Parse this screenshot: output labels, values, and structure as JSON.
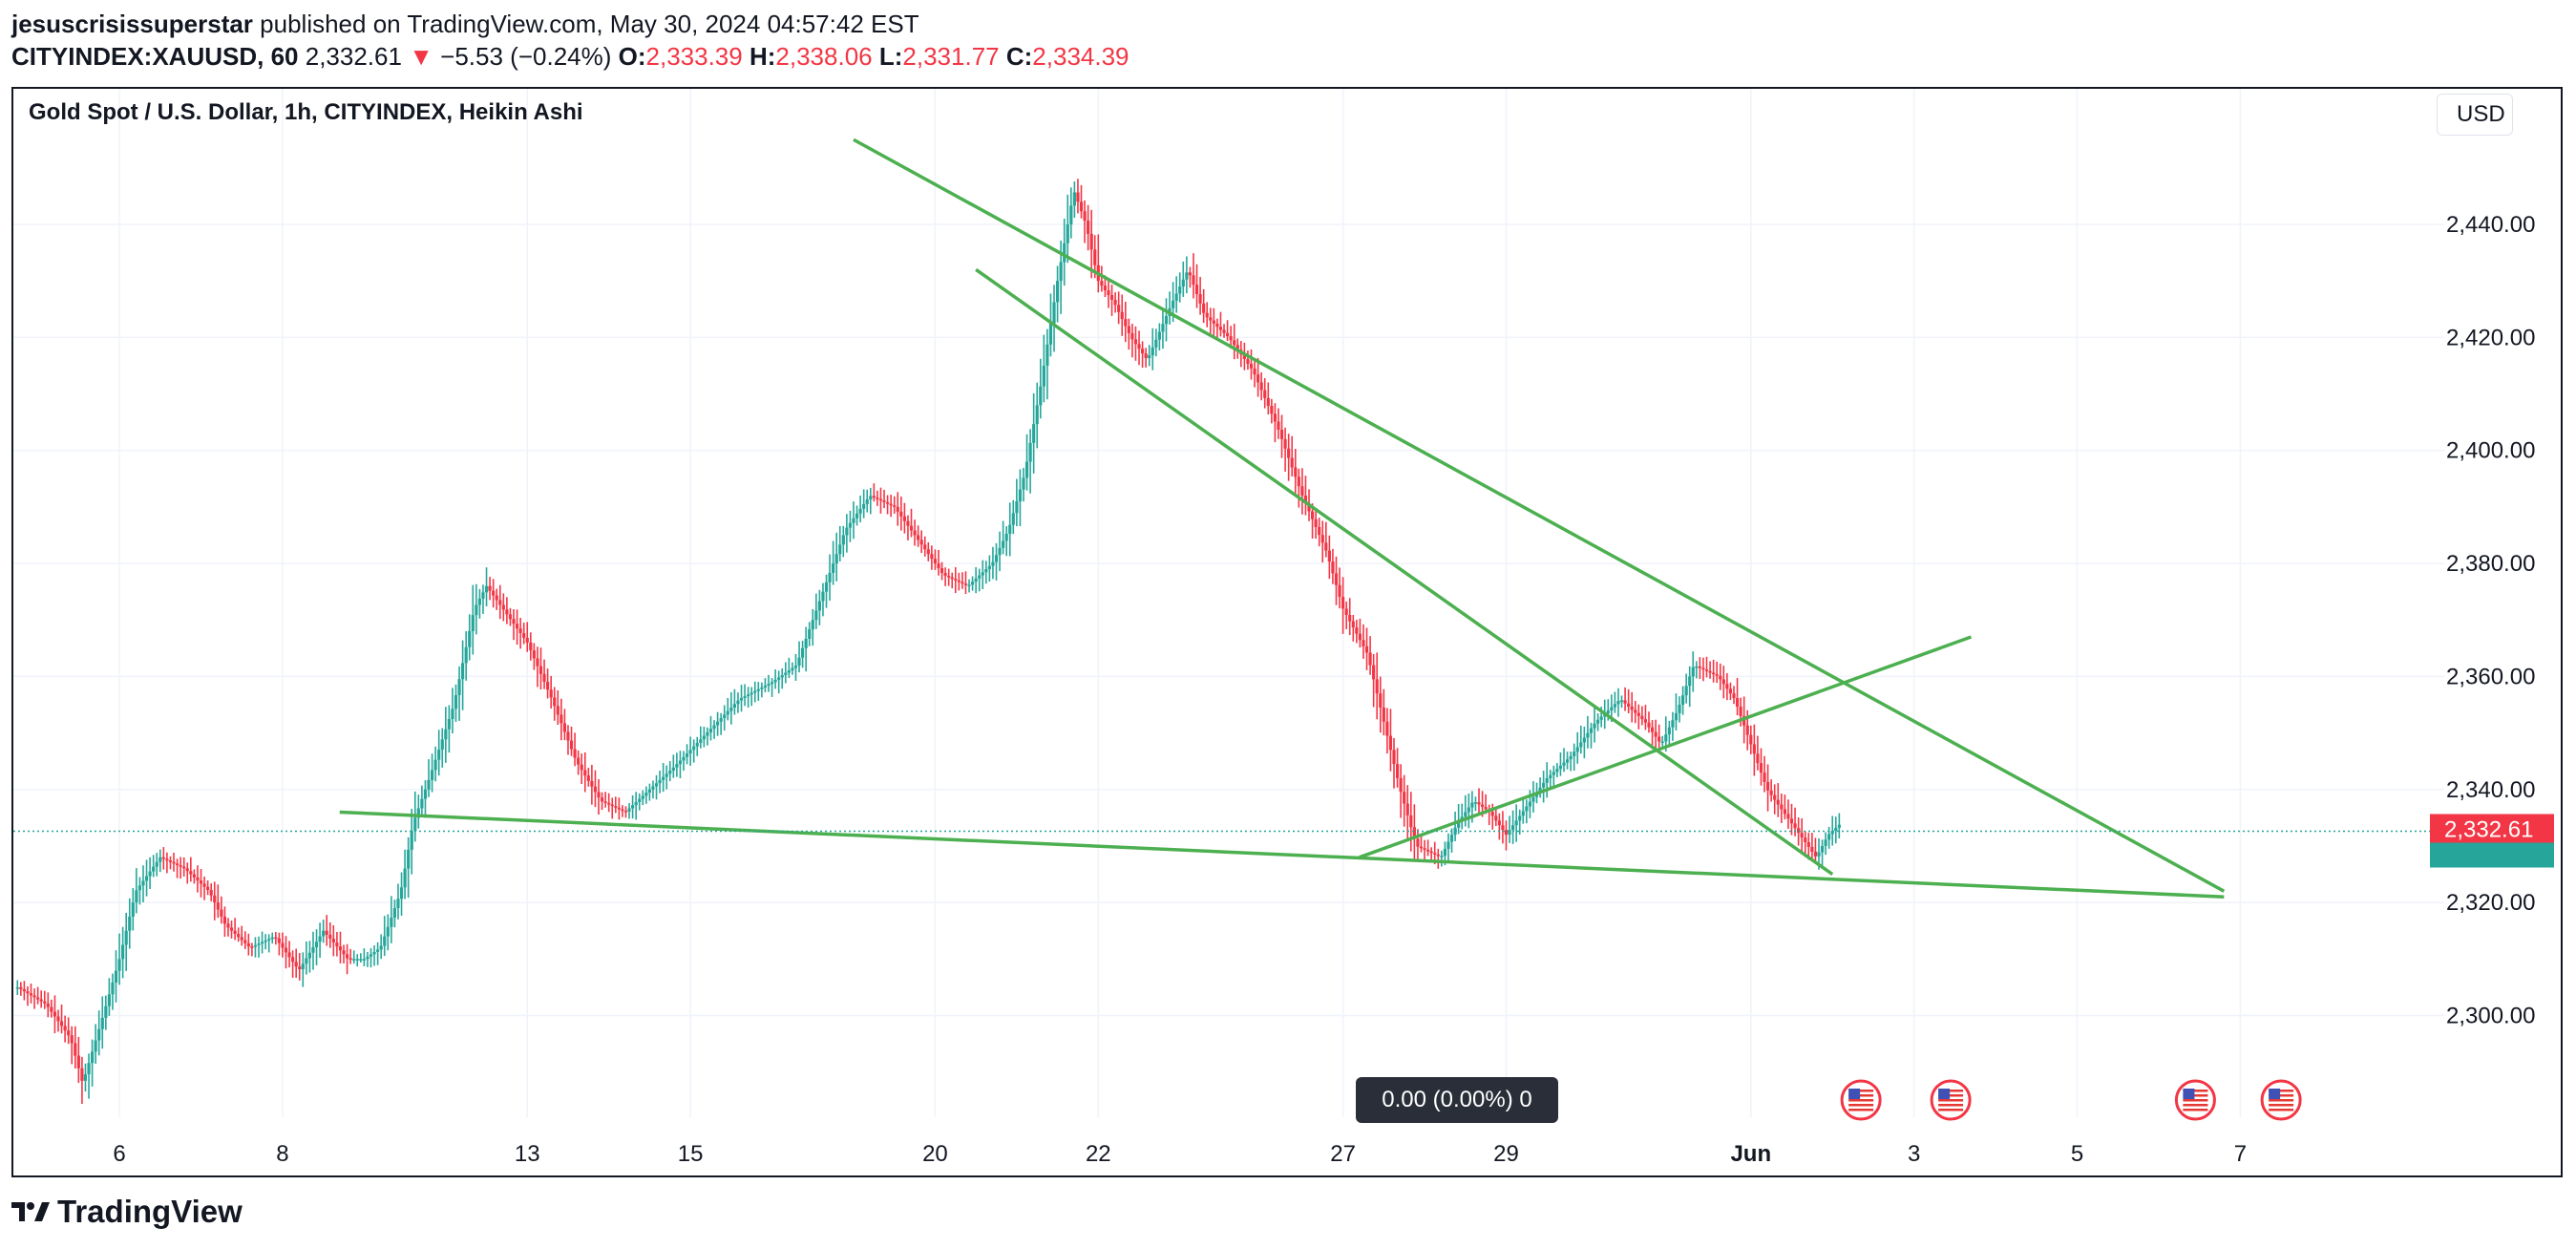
{
  "header": {
    "author": "jesuscrisissuperstar",
    "published": " published on TradingView.com, May 30, 2024 04:57:42 EST",
    "symbol": "CITYINDEX:XAUUSD, 60",
    "last": "2,332.61",
    "change_arrow": "▼",
    "change": "−5.53 (−0.24%)",
    "o_label": "O:",
    "o_value": "2,333.39",
    "h_label": "H:",
    "h_value": "2,338.06",
    "l_label": "L:",
    "l_value": "2,331.77",
    "c_label": "C:",
    "c_value": "2,334.39"
  },
  "legend_title": "Gold Spot / U.S. Dollar, 1h, CITYINDEX, Heikin Ashi",
  "currency": "USD",
  "measure_badge": "0.00 (0.00%) 0",
  "branding": "TradingView",
  "colors": {
    "up": "#26a69a",
    "down": "#f23645",
    "trendline": "#4caf50",
    "text": "#131722"
  },
  "chart_data": {
    "type": "candlestick",
    "style": "Heikin Ashi",
    "symbol": "XAUUSD",
    "timeframe": "1h",
    "y_ticks": [
      2300,
      2320,
      2340,
      2360,
      2380,
      2400,
      2420,
      2440
    ],
    "y_tick_labels": [
      "2,300.00",
      "2,320.00",
      "2,340.00",
      "2,360.00",
      "2,380.00",
      "2,400.00",
      "2,420.00",
      "2,440.00"
    ],
    "ylim": [
      2282,
      2464
    ],
    "x_tick_labels": [
      "6",
      "8",
      "13",
      "15",
      "20",
      "22",
      "27",
      "29",
      "Jun",
      "3",
      "5",
      "7"
    ],
    "x_tick_days": [
      6,
      8,
      11,
      13,
      16,
      18,
      21,
      23,
      26,
      28,
      30,
      32
    ],
    "xlim_days": [
      4.7,
      34.5
    ],
    "last_price": 2332.61,
    "last_price_label": "2,332.61",
    "grid": true,
    "series": [
      {
        "name": "price-path",
        "points": [
          [
            4.75,
            2305
          ],
          [
            5.1,
            2302
          ],
          [
            5.4,
            2296
          ],
          [
            5.55,
            2288
          ],
          [
            5.8,
            2300
          ],
          [
            6.0,
            2310
          ],
          [
            6.2,
            2322
          ],
          [
            6.5,
            2328
          ],
          [
            6.8,
            2326
          ],
          [
            7.1,
            2322
          ],
          [
            7.3,
            2316
          ],
          [
            7.6,
            2312
          ],
          [
            7.9,
            2314
          ],
          [
            8.2,
            2308
          ],
          [
            8.5,
            2315
          ],
          [
            8.8,
            2310
          ],
          [
            9.0,
            2310
          ],
          [
            9.2,
            2312
          ],
          [
            9.45,
            2322
          ],
          [
            9.6,
            2334
          ],
          [
            9.8,
            2342
          ],
          [
            10.1,
            2355
          ],
          [
            10.35,
            2372
          ],
          [
            10.5,
            2376
          ],
          [
            10.7,
            2372
          ],
          [
            11.0,
            2366
          ],
          [
            11.3,
            2356
          ],
          [
            11.6,
            2345
          ],
          [
            11.9,
            2338
          ],
          [
            12.2,
            2336
          ],
          [
            12.5,
            2340
          ],
          [
            12.8,
            2344
          ],
          [
            13.2,
            2350
          ],
          [
            13.6,
            2356
          ],
          [
            14.0,
            2359
          ],
          [
            14.3,
            2362
          ],
          [
            14.6,
            2374
          ],
          [
            14.9,
            2386
          ],
          [
            15.2,
            2392
          ],
          [
            15.5,
            2390
          ],
          [
            15.8,
            2384
          ],
          [
            16.1,
            2378
          ],
          [
            16.4,
            2376
          ],
          [
            16.7,
            2380
          ],
          [
            16.9,
            2386
          ],
          [
            17.1,
            2396
          ],
          [
            17.3,
            2412
          ],
          [
            17.5,
            2430
          ],
          [
            17.7,
            2446
          ],
          [
            17.85,
            2440
          ],
          [
            18.0,
            2430
          ],
          [
            18.2,
            2426
          ],
          [
            18.4,
            2420
          ],
          [
            18.6,
            2416
          ],
          [
            18.9,
            2426
          ],
          [
            19.1,
            2432
          ],
          [
            19.3,
            2424
          ],
          [
            19.6,
            2420
          ],
          [
            19.9,
            2414
          ],
          [
            20.2,
            2404
          ],
          [
            20.5,
            2392
          ],
          [
            20.8,
            2382
          ],
          [
            21.0,
            2372
          ],
          [
            21.3,
            2364
          ],
          [
            21.5,
            2352
          ],
          [
            21.7,
            2340
          ],
          [
            21.9,
            2330
          ],
          [
            22.2,
            2328
          ],
          [
            22.4,
            2334
          ],
          [
            22.6,
            2338
          ],
          [
            22.8,
            2336
          ],
          [
            23.0,
            2332
          ],
          [
            23.2,
            2336
          ],
          [
            23.5,
            2342
          ],
          [
            23.8,
            2346
          ],
          [
            24.1,
            2352
          ],
          [
            24.4,
            2356
          ],
          [
            24.7,
            2352
          ],
          [
            24.9,
            2348
          ],
          [
            25.1,
            2354
          ],
          [
            25.3,
            2362
          ],
          [
            25.6,
            2360
          ],
          [
            25.8,
            2356
          ],
          [
            26.0,
            2348
          ],
          [
            26.2,
            2340
          ],
          [
            26.4,
            2336
          ],
          [
            26.6,
            2332
          ],
          [
            26.8,
            2328
          ],
          [
            26.95,
            2332
          ],
          [
            27.1,
            2334
          ]
        ]
      }
    ],
    "trendlines": [
      {
        "from": [
          15.0,
          2455
        ],
        "to": [
          31.8,
          2322
        ]
      },
      {
        "from": [
          16.5,
          2432
        ],
        "to": [
          27.0,
          2325
        ]
      },
      {
        "from": [
          8.7,
          2336
        ],
        "to": [
          31.8,
          2321
        ]
      },
      {
        "from": [
          21.2,
          2328
        ],
        "to": [
          28.7,
          2367
        ]
      }
    ],
    "event_markers_days": [
      27.35,
      28.45,
      31.45,
      32.5
    ]
  }
}
